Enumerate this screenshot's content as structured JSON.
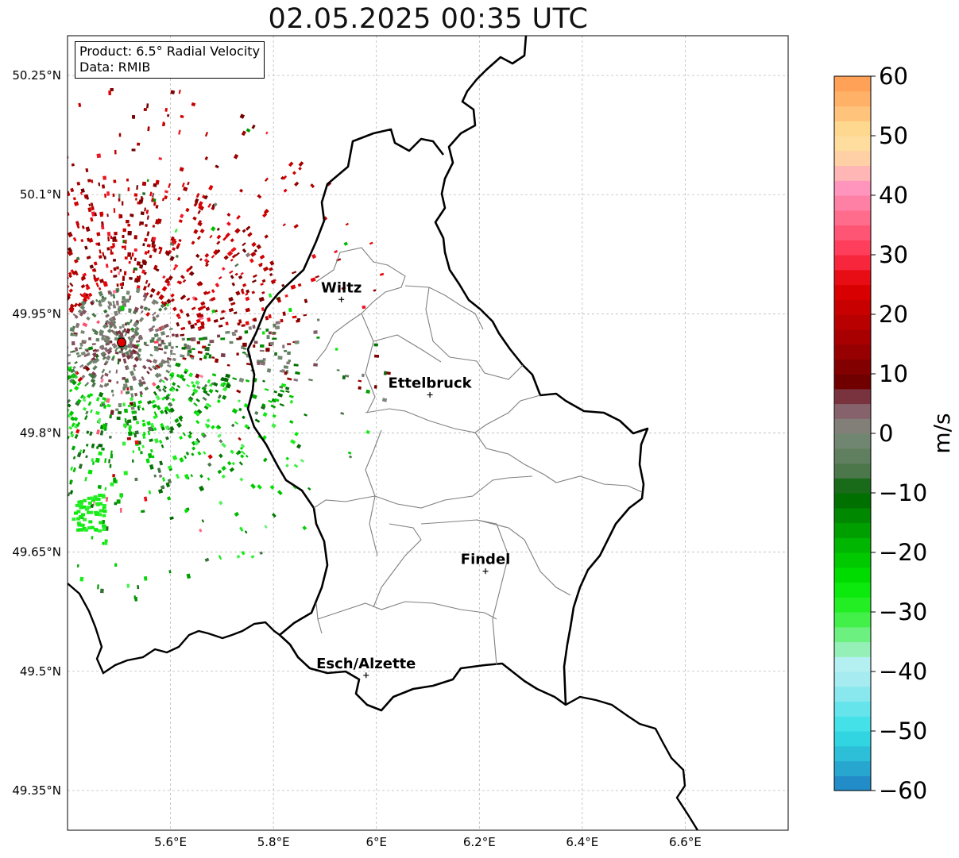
{
  "title": "02.05.2025 00:35 UTC",
  "info": {
    "product_line": "Product: 6.5° Radial Velocity",
    "data_line": "Data: RMIB"
  },
  "map": {
    "lon_ticks": [
      {
        "value": 5.6,
        "label": "5.6°E"
      },
      {
        "value": 5.8,
        "label": "5.8°E"
      },
      {
        "value": 6.0,
        "label": "6°E"
      },
      {
        "value": 6.2,
        "label": "6.2°E"
      },
      {
        "value": 6.4,
        "label": "6.4°E"
      },
      {
        "value": 6.6,
        "label": "6.6°E"
      }
    ],
    "lat_ticks": [
      {
        "value": 50.25,
        "label": "50.25°N"
      },
      {
        "value": 50.1,
        "label": "50.1°N"
      },
      {
        "value": 49.95,
        "label": "49.95°N"
      },
      {
        "value": 49.8,
        "label": "49.8°N"
      },
      {
        "value": 49.65,
        "label": "49.65°N"
      },
      {
        "value": 49.5,
        "label": "49.5°N"
      },
      {
        "value": 49.35,
        "label": "49.35°N"
      }
    ],
    "lon_range": [
      5.4,
      6.8
    ],
    "lat_range": [
      49.3,
      50.3
    ],
    "cities": [
      {
        "name": "Wiltz",
        "lon": 5.932,
        "lat": 49.968
      },
      {
        "name": "Ettelbruck",
        "lon": 6.104,
        "lat": 49.848
      },
      {
        "name": "Findel",
        "lon": 6.212,
        "lat": 49.626
      },
      {
        "name": "Esch/Alzette",
        "lon": 5.98,
        "lat": 49.495
      }
    ],
    "radar_site": {
      "lon": 5.505,
      "lat": 49.914
    }
  },
  "colorbar": {
    "label": "m/s",
    "min": -60,
    "max": 60,
    "ticks": [
      {
        "value": 60,
        "label": "60"
      },
      {
        "value": 50,
        "label": "50"
      },
      {
        "value": 40,
        "label": "40"
      },
      {
        "value": 30,
        "label": "30"
      },
      {
        "value": 20,
        "label": "20"
      },
      {
        "value": 10,
        "label": "10"
      },
      {
        "value": 0,
        "label": "0"
      },
      {
        "value": -10,
        "label": "−10"
      },
      {
        "value": -20,
        "label": "−20"
      },
      {
        "value": -30,
        "label": "−30"
      },
      {
        "value": -40,
        "label": "−40"
      },
      {
        "value": -50,
        "label": "−50"
      },
      {
        "value": -60,
        "label": "−60"
      }
    ]
  },
  "colors": {
    "border": "#000000",
    "canton_lines": "#808080",
    "grid": "#b0b0b0",
    "radar_site": "#e00000"
  }
}
